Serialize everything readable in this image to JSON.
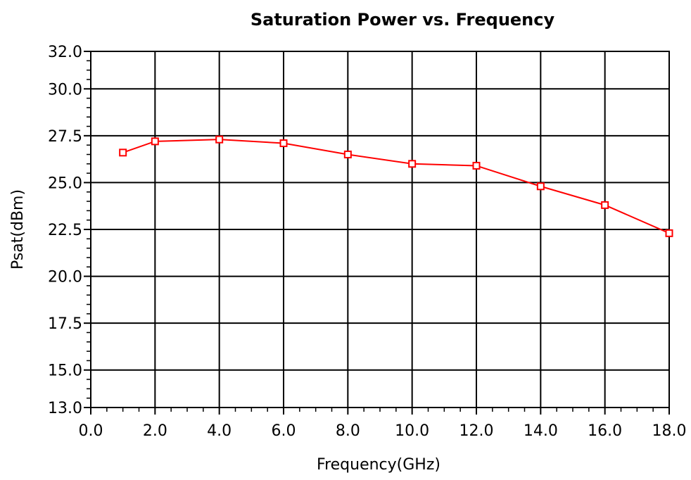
{
  "chart_data": {
    "type": "line",
    "title": "Saturation Power vs. Frequency",
    "xlabel": "Frequency(GHz)",
    "ylabel": "Psat(dBm)",
    "xlim": [
      0,
      18
    ],
    "ylim": [
      13,
      32
    ],
    "x_ticks": [
      0,
      2,
      4,
      6,
      8,
      10,
      12,
      14,
      16,
      18
    ],
    "x_tick_labels": [
      "0.0",
      "2.0",
      "4.0",
      "6.0",
      "8.0",
      "10.0",
      "12.0",
      "14.0",
      "16.0",
      "18.0"
    ],
    "y_ticks": [
      13,
      15,
      17.5,
      20,
      22.5,
      25,
      27.5,
      30,
      32
    ],
    "y_tick_labels": [
      "13.0",
      "15.0",
      "17.5",
      "20.0",
      "22.5",
      "25.0",
      "27.5",
      "30.0",
      "32.0"
    ],
    "grid": true,
    "legend": "none",
    "series": [
      {
        "color": "#ff0000",
        "marker": "square-open",
        "x": [
          1,
          2,
          4,
          6,
          8,
          10,
          12,
          14,
          16,
          18
        ],
        "y": [
          26.6,
          27.2,
          27.3,
          27.1,
          26.5,
          26.0,
          25.9,
          24.8,
          23.8,
          22.3
        ]
      }
    ]
  }
}
